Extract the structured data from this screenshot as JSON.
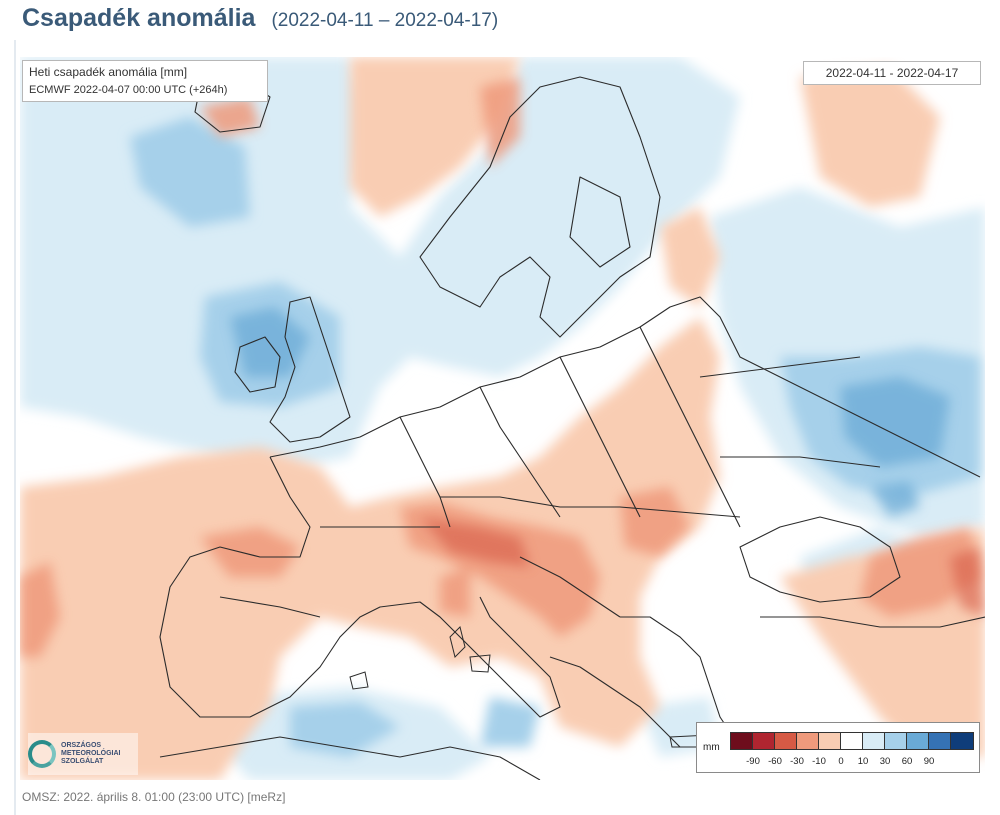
{
  "header": {
    "title": "Csapadék anomália",
    "date_range": "(2022-04-11 – 2022-04-17)"
  },
  "map": {
    "info_line1": "Heti csapadék anomália [mm]",
    "info_line2": "ECMWF 2022-04-07 00:00 UTC (+264h)",
    "date_box": "2022-04-11 - 2022-04-17"
  },
  "legend": {
    "unit": "mm",
    "colors": [
      "#6e0d1c",
      "#b02530",
      "#d65a45",
      "#ef9a7c",
      "#f9cdb3",
      "#ffffff",
      "#d9ecf6",
      "#a6d0ea",
      "#6aaad6",
      "#3572b4",
      "#0f3d7a"
    ],
    "labels": [
      "-90",
      "-60",
      "-30",
      "-10",
      "0",
      "10",
      "30",
      "60",
      "90"
    ]
  },
  "logo": {
    "lines": [
      "ORSZÁGOS",
      "METEOROLÓGIAI",
      "SZOLGÁLAT"
    ]
  },
  "footer": {
    "text": "OMSZ: 2022. április 8. 01:00 (23:00  UTC)  [meRz]"
  }
}
